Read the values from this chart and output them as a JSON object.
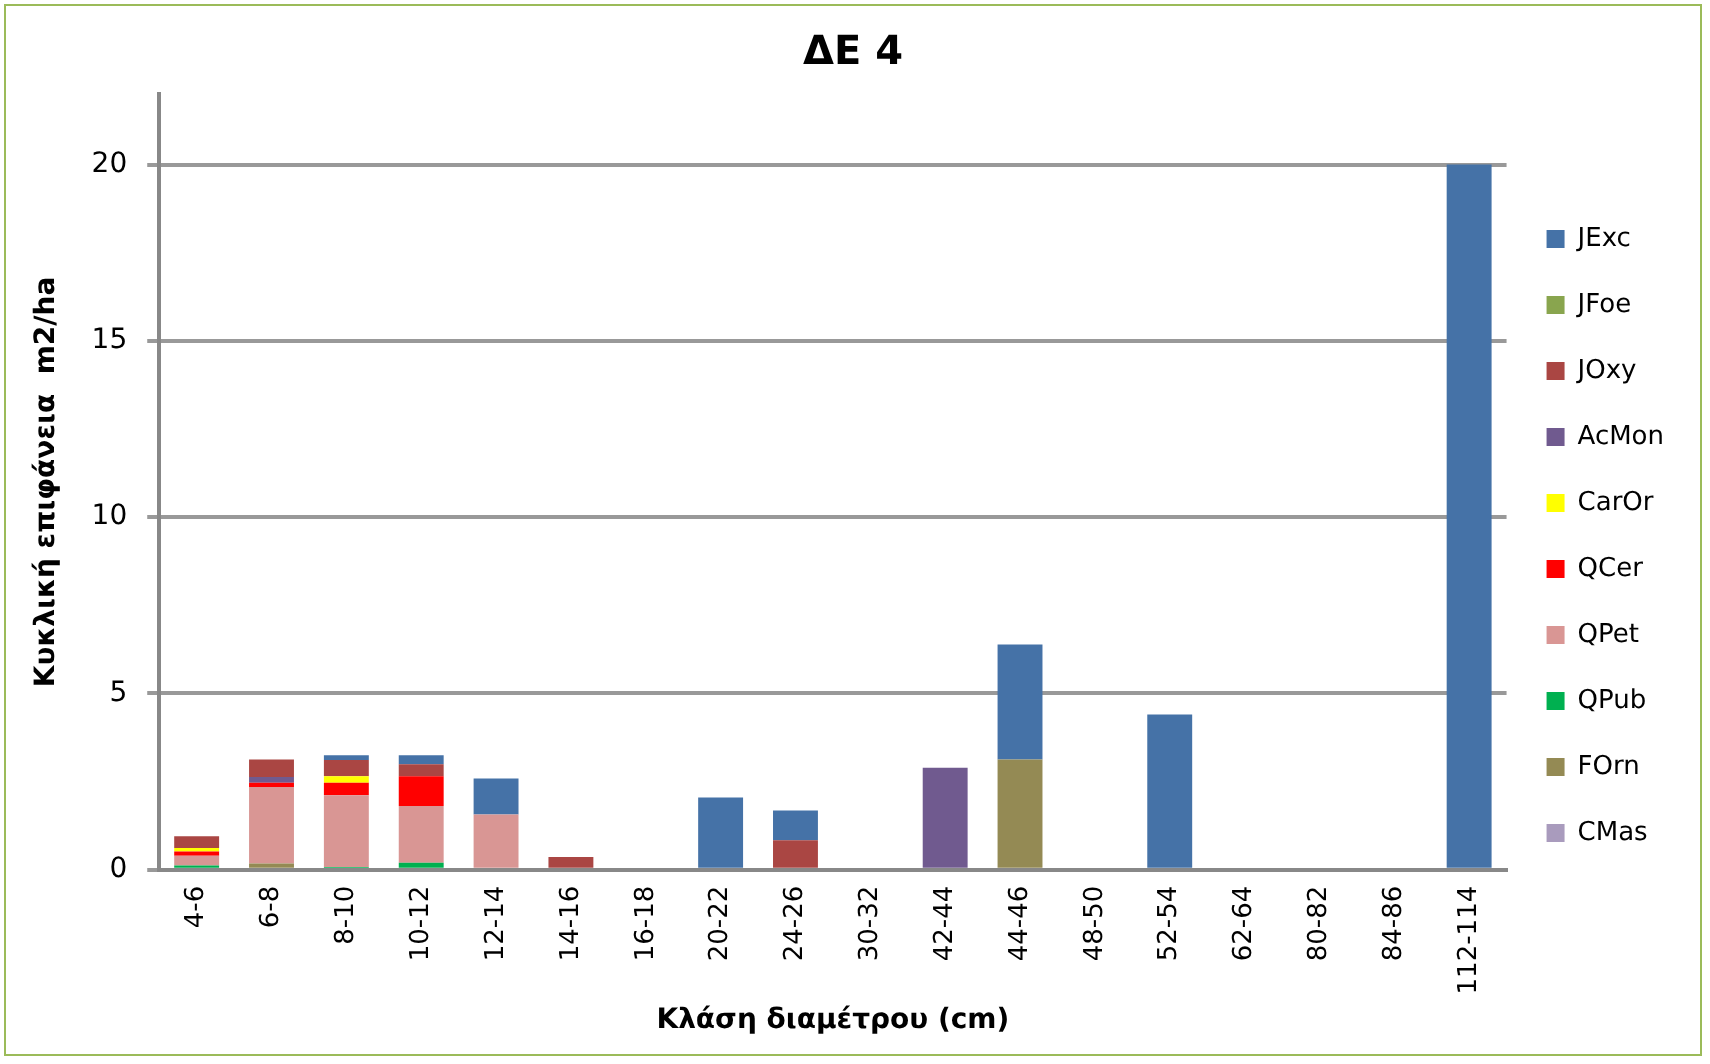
{
  "chart_data": {
    "type": "bar",
    "title": "ΔΕ 4",
    "xlabel": "Κλάση διαμέτρου (cm)",
    "ylabel": "Κυκλική επιφάνεια  m2/ha",
    "categories": [
      "4-6",
      "6-8",
      "8-10",
      "10-12",
      "12-14",
      "14-16",
      "16-18",
      "20-22",
      "24-26",
      "30-32",
      "42-44",
      "44-46",
      "48-50",
      "52-54",
      "62-64",
      "80-82",
      "84-86",
      "112-114"
    ],
    "stacked": true,
    "ylim": [
      0,
      22
    ],
    "yticks": [
      0,
      5,
      10,
      15,
      20
    ],
    "grid": "y",
    "legend": "right",
    "series": [
      {
        "name": "CMas",
        "color": "#a99bbd",
        "values": [
          0,
          0,
          0,
          0,
          0,
          0,
          0,
          0,
          0,
          0,
          0,
          0,
          0,
          0,
          0,
          0,
          0,
          0
        ]
      },
      {
        "name": "FOrn",
        "color": "#948a54",
        "values": [
          null,
          0.18,
          0,
          0,
          0,
          0,
          0,
          0,
          0,
          0,
          0,
          3.13,
          0,
          0,
          0,
          0,
          0,
          0
        ]
      },
      {
        "name": "QPub",
        "color": "#00b050",
        "values": [
          0.12,
          0,
          0.08,
          0.2,
          0,
          0,
          0,
          0,
          0,
          0,
          0,
          0,
          0,
          0,
          0,
          0,
          0,
          0
        ]
      },
      {
        "name": "QPet",
        "color": "#d99694",
        "values": [
          0.28,
          2.17,
          2.03,
          1.61,
          1.57,
          0,
          0,
          0,
          0,
          0,
          0,
          0,
          0,
          0,
          0,
          0,
          0,
          0
        ]
      },
      {
        "name": "QCer",
        "color": "#ff0000",
        "values": [
          0.12,
          0.12,
          0.36,
          0.84,
          0,
          0,
          0,
          0,
          0,
          0,
          0,
          0,
          0,
          0,
          0,
          0,
          0,
          0
        ]
      },
      {
        "name": "CarOr",
        "color": "#ffff00",
        "values": [
          0.1,
          0,
          0.18,
          0,
          0,
          0,
          0,
          0,
          0,
          0,
          0,
          0,
          0,
          0,
          0,
          0,
          0,
          0
        ]
      },
      {
        "name": "AcMon",
        "color": "#705a8f",
        "values": [
          0,
          0.16,
          0,
          0,
          0,
          0,
          0,
          0,
          0,
          0,
          2.89,
          0,
          0,
          0,
          0,
          0,
          0,
          0
        ]
      },
      {
        "name": "JOxy",
        "color": "#aa4643",
        "values": [
          0.33,
          0.5,
          0.46,
          0.34,
          0,
          0.36,
          0,
          0,
          0.84,
          0,
          0,
          0,
          0,
          0,
          0,
          0,
          0,
          0
        ]
      },
      {
        "name": "JFoe",
        "color": "#89a54e",
        "values": [
          0,
          0,
          0,
          0,
          0,
          0,
          0,
          0,
          0,
          0,
          0,
          0,
          0,
          0,
          0,
          0,
          0,
          0
        ]
      },
      {
        "name": "JExc",
        "color": "#4572a7",
        "values": [
          0,
          0,
          0.14,
          0.26,
          1.02,
          0,
          0,
          2.05,
          0.84,
          0,
          0,
          3.26,
          0,
          4.4,
          0,
          0,
          0,
          20
        ]
      }
    ]
  }
}
